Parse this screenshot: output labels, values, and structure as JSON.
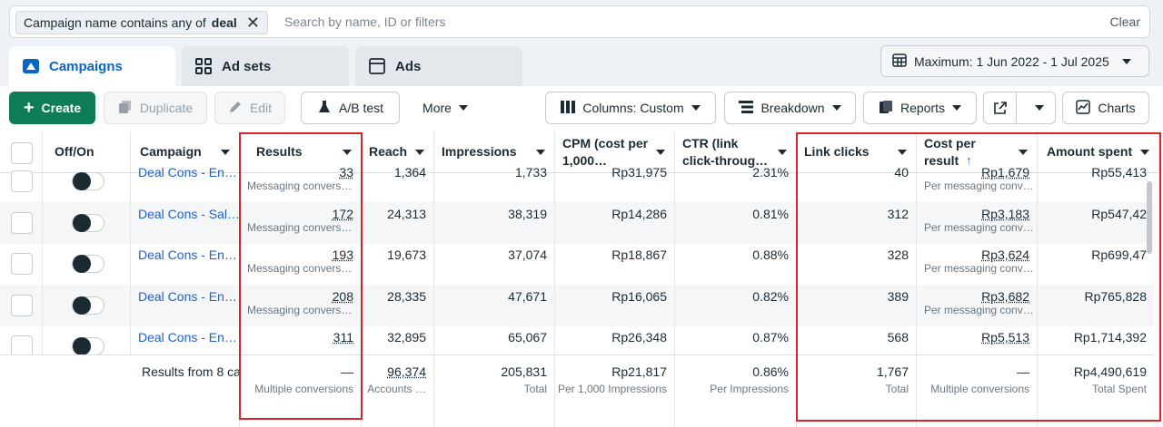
{
  "filter": {
    "chip_prefix": "Campaign name contains any of",
    "chip_value": "deal",
    "search_placeholder": "Search by name, ID or filters",
    "clear_label": "Clear"
  },
  "tabs": [
    {
      "label": "Campaigns",
      "icon": "campaigns-icon",
      "active": true
    },
    {
      "label": "Ad sets",
      "icon": "ad-sets-grid-icon",
      "active": false
    },
    {
      "label": "Ads",
      "icon": "ads-window-icon",
      "active": false
    }
  ],
  "date_range": "Maximum: 1 Jun 2022 - 1 Jul 2025",
  "toolbar": {
    "create": "Create",
    "duplicate": "Duplicate",
    "edit": "Edit",
    "ab_test": "A/B test",
    "more": "More",
    "columns": "Columns: Custom",
    "breakdown": "Breakdown",
    "reports": "Reports",
    "charts": "Charts"
  },
  "columns": {
    "offon": "Off/On",
    "campaign": "Campaign",
    "results": "Results",
    "reach": "Reach",
    "impressions": "Impressions",
    "cpm": "CPM (cost per 1,000…",
    "ctr": "CTR (link click-throug…",
    "link_clicks": "Link clicks",
    "cost_per_result": "Cost per result",
    "amount_spent": "Amount spent"
  },
  "rows": [
    {
      "campaign": "Deal Cons - En…",
      "results": "33",
      "results_sub": "Messaging convers…",
      "reach": "1,364",
      "impressions": "1,733",
      "cpm": "Rp31,975",
      "ctr": "2.31%",
      "link_clicks": "40",
      "cpr": "Rp1,679",
      "cpr_sub": "Per messaging conv…",
      "spent": "Rp55,413"
    },
    {
      "campaign": "Deal Cons - Sal…",
      "results": "172",
      "results_sub": "Messaging convers…",
      "reach": "24,313",
      "impressions": "38,319",
      "cpm": "Rp14,286",
      "ctr": "0.81%",
      "link_clicks": "312",
      "cpr": "Rp3,183",
      "cpr_sub": "Per messaging conv…",
      "spent": "Rp547,42"
    },
    {
      "campaign": "Deal Cons - En…",
      "results": "193",
      "results_sub": "Messaging convers…",
      "reach": "19,673",
      "impressions": "37,074",
      "cpm": "Rp18,867",
      "ctr": "0.88%",
      "link_clicks": "328",
      "cpr": "Rp3,624",
      "cpr_sub": "Per messaging conv…",
      "spent": "Rp699,47"
    },
    {
      "campaign": "Deal Cons - En…",
      "results": "208",
      "results_sub": "Messaging convers…",
      "reach": "28,335",
      "impressions": "47,671",
      "cpm": "Rp16,065",
      "ctr": "0.82%",
      "link_clicks": "389",
      "cpr": "Rp3,682",
      "cpr_sub": "Per messaging conv…",
      "spent": "Rp765,828"
    },
    {
      "campaign": "Deal Cons - En…",
      "results": "311",
      "results_sub": "",
      "reach": "32,895",
      "impressions": "65,067",
      "cpm": "Rp26,348",
      "ctr": "0.87%",
      "link_clicks": "568",
      "cpr": "Rp5,513",
      "cpr_sub": "",
      "spent": "Rp1,714,392"
    }
  ],
  "totals": {
    "label": "Results from 8 ca",
    "results": "—",
    "results_sub": "Multiple conversions",
    "reach": "96,374",
    "reach_sub": "Accounts …",
    "impressions": "205,831",
    "impressions_sub": "Total",
    "cpm": "Rp21,817",
    "cpm_sub": "Per 1,000 Impressions",
    "ctr": "0.86%",
    "ctr_sub": "Per Impressions",
    "link_clicks": "1,767",
    "link_clicks_sub": "Total",
    "cpr": "—",
    "cpr_sub": "Multiple conversions",
    "spent": "Rp4,490,619",
    "spent_sub": "Total Spent"
  },
  "highlight_color": "#d6262b"
}
